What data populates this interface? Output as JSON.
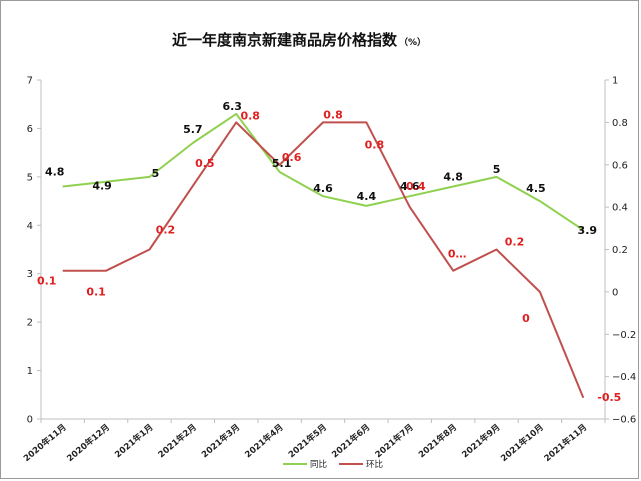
{
  "chart_data": {
    "type": "line",
    "title": "近一年度南京新建商品房价格指数",
    "title_unit": "（%）",
    "categories": [
      "2020年11月",
      "2020年12月",
      "2021年1月",
      "2021年2月",
      "2021年3月",
      "2021年4月",
      "2021年5月",
      "2021年6月",
      "2021年7月",
      "2021年8月",
      "2021年9月",
      "2021年10月",
      "2021年11月"
    ],
    "series": [
      {
        "name": "同比",
        "axis": "left",
        "color": "#8fd14f",
        "values": [
          4.8,
          4.9,
          5,
          5.7,
          6.3,
          5.1,
          4.6,
          4.4,
          4.6,
          4.8,
          5,
          4.5,
          3.9
        ],
        "labels": [
          "4.8",
          "4.9",
          "5",
          "5.7",
          "6.3",
          "5.1",
          "4.6",
          "4.4",
          "4.6",
          "4.8",
          "5",
          "4.5",
          "3.9"
        ]
      },
      {
        "name": "环比",
        "axis": "right",
        "color": "#c0504d",
        "values": [
          0.1,
          0.1,
          0.2,
          0.5,
          0.8,
          0.6,
          0.8,
          0.8,
          0.4,
          0.1,
          0.2,
          0,
          -0.5
        ],
        "labels": [
          "0.1",
          "0.1",
          "0.2",
          "0.5",
          "0.8",
          "0.6",
          "0.8",
          "0.8",
          "0.4",
          "0…",
          "0.2",
          "0",
          "-0.5"
        ]
      }
    ],
    "y_left": {
      "min": 0,
      "max": 7,
      "ticks": [
        "0",
        "1",
        "2",
        "3",
        "4",
        "5",
        "6",
        "7"
      ]
    },
    "y_right": {
      "min": -0.6,
      "max": 1.0,
      "ticks": [
        "−0.6",
        "−0.4",
        "−0.2",
        "0",
        "0.2",
        "0.4",
        "0.6",
        "0.8",
        "1"
      ]
    },
    "grid": false,
    "legend_position": "bottom-right",
    "label_text_color_yoy": "#111111",
    "label_text_color_mom": "#e02020"
  }
}
